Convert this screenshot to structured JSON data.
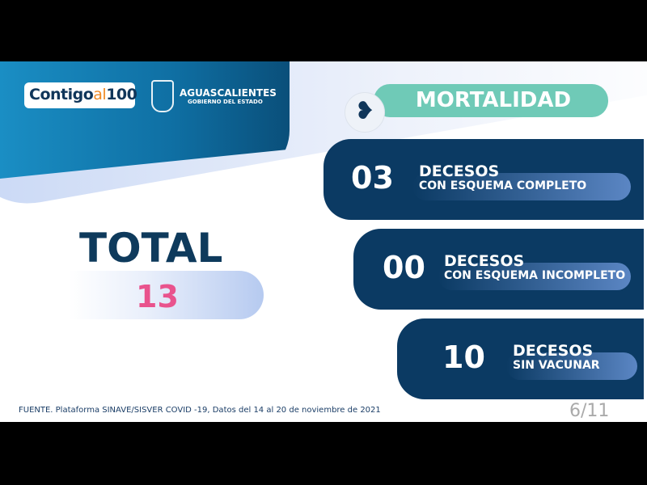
{
  "header": {
    "brand": "Contigo",
    "brand_accent": "al",
    "brand_number": "100",
    "gov_name": "AGUASCALIENTES",
    "gov_sub": "GOBIERNO DEL ESTADO"
  },
  "section_title": "MORTALIDAD",
  "total": {
    "label": "TOTAL",
    "value": "13"
  },
  "cards": [
    {
      "value": "03",
      "line1": "DECESOS",
      "line2": "CON ESQUEMA COMPLETO"
    },
    {
      "value": "00",
      "line1": "DECESOS",
      "line2": "CON ESQUEMA INCOMPLETO"
    },
    {
      "value": "10",
      "line1": "DECESOS",
      "line2": "SIN VACUNAR"
    }
  ],
  "footer": {
    "source": "FUENTE. Plataforma SINAVE/SISVER COVID -19, Datos del 14 al 20 de noviembre de 2021",
    "page": "6/11"
  },
  "colors": {
    "navy": "#0b3a63",
    "teal": "#6fcab7",
    "pink": "#e9538d",
    "blue": "#1a8ec4"
  }
}
